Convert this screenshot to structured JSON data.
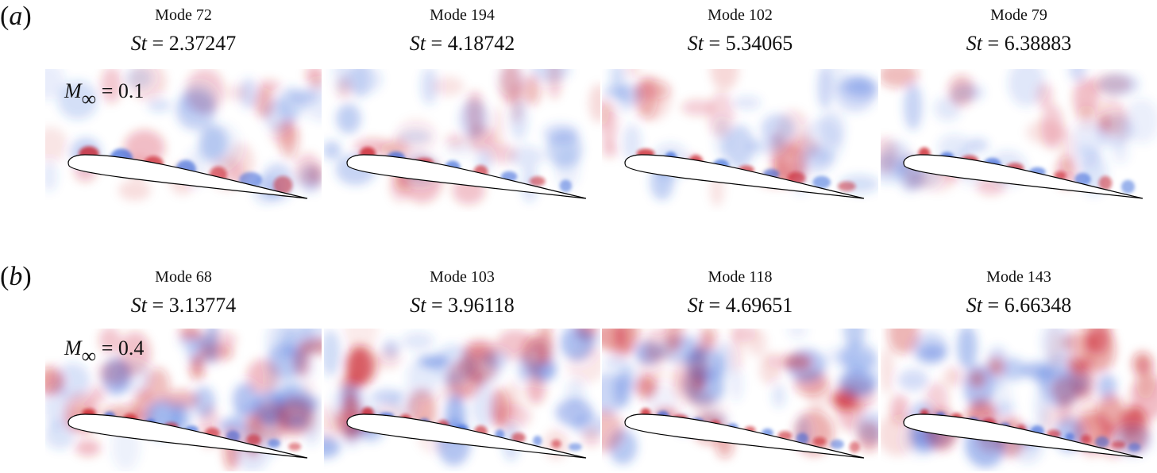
{
  "rows": [
    {
      "label": "a",
      "mach_symbol": "M",
      "mach_subscript": "∞",
      "mach_value": "= 0.1",
      "panels": [
        {
          "mode": "Mode 72",
          "st_symbol": "St",
          "st_value": "= 2.37247"
        },
        {
          "mode": "Mode 194",
          "st_symbol": "St",
          "st_value": "= 4.18742"
        },
        {
          "mode": "Mode 102",
          "st_symbol": "St",
          "st_value": "= 5.34065"
        },
        {
          "mode": "Mode 79",
          "st_symbol": "St",
          "st_value": "= 6.38883"
        }
      ]
    },
    {
      "label": "b",
      "mach_symbol": "M",
      "mach_subscript": "∞",
      "mach_value": "= 0.4",
      "panels": [
        {
          "mode": "Mode 68",
          "st_symbol": "St",
          "st_value": "= 3.13774"
        },
        {
          "mode": "Mode 103",
          "st_symbol": "St",
          "st_value": "= 3.96118"
        },
        {
          "mode": "Mode 118",
          "st_symbol": "St",
          "st_value": "= 4.69651"
        },
        {
          "mode": "Mode 143",
          "st_symbol": "St",
          "st_value": "= 6.66348"
        }
      ]
    }
  ],
  "colors": {
    "positive": "#c8141e",
    "negative": "#2e5fd8",
    "airfoil_fill": "#ffffff",
    "airfoil_stroke": "#000000"
  }
}
